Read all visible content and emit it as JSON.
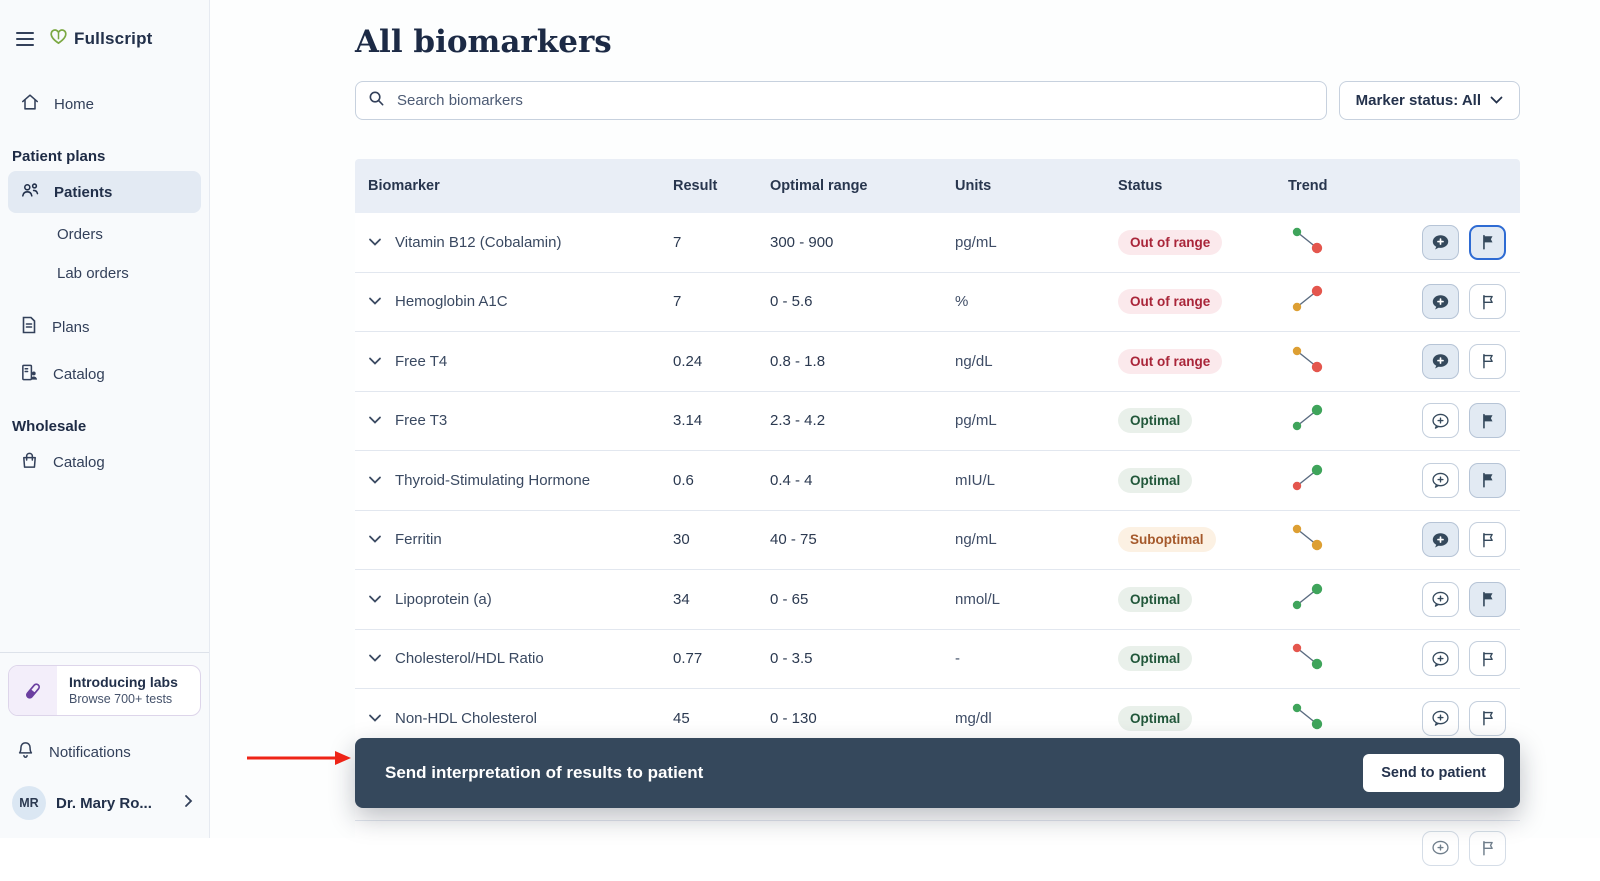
{
  "sidebar": {
    "logo": "Fullscript",
    "home": "Home",
    "patient_plans_heading": "Patient plans",
    "patients": "Patients",
    "orders": "Orders",
    "lab_orders": "Lab orders",
    "plans": "Plans",
    "catalog": "Catalog",
    "wholesale_heading": "Wholesale",
    "wholesale_catalog": "Catalog",
    "labs_banner": {
      "title": "Introducing labs",
      "subtitle": "Browse 700+ tests"
    },
    "notifications": "Notifications",
    "profile": {
      "initials": "MR",
      "name": "Dr. Mary Ro..."
    }
  },
  "header": {
    "title": "All biomarkers",
    "search_placeholder": "Search biomarkers",
    "marker_status_filter": "Marker status: All"
  },
  "table": {
    "columns": [
      "Biomarker",
      "Result",
      "Optimal range",
      "Units",
      "Status",
      "Trend"
    ],
    "rows": [
      {
        "name": "Vitamin B12 (Cobalamin)",
        "result": "7",
        "range": "300 - 900",
        "units": "pg/mL",
        "status": "Out of range",
        "status_type": "out",
        "trend_dir": "down",
        "trend_from": "green",
        "trend_to": "red",
        "comment_style": "filled",
        "flag_style": "filled",
        "flag_focused": true
      },
      {
        "name": "Hemoglobin A1C",
        "result": "7",
        "range": "0 - 5.6",
        "units": "%",
        "status": "Out of range",
        "status_type": "out",
        "trend_dir": "up",
        "trend_from": "orange",
        "trend_to": "red",
        "comment_style": "filled",
        "flag_style": "outline",
        "flag_focused": false
      },
      {
        "name": "Free T4",
        "result": "0.24",
        "range": "0.8 - 1.8",
        "units": "ng/dL",
        "status": "Out of range",
        "status_type": "out",
        "trend_dir": "down",
        "trend_from": "orange",
        "trend_to": "red",
        "comment_style": "filled",
        "flag_style": "outline",
        "flag_focused": false
      },
      {
        "name": "Free T3",
        "result": "3.14",
        "range": "2.3 - 4.2",
        "units": "pg/mL",
        "status": "Optimal",
        "status_type": "optimal",
        "trend_dir": "up",
        "trend_from": "green",
        "trend_to": "green",
        "comment_style": "outline",
        "flag_style": "filled",
        "flag_focused": false
      },
      {
        "name": "Thyroid-Stimulating Hormone",
        "result": "0.6",
        "range": "0.4 - 4",
        "units": "mIU/L",
        "status": "Optimal",
        "status_type": "optimal",
        "trend_dir": "up",
        "trend_from": "red",
        "trend_to": "green",
        "comment_style": "outline",
        "flag_style": "filled",
        "flag_focused": false
      },
      {
        "name": "Ferritin",
        "result": "30",
        "range": "40 - 75",
        "units": "ng/mL",
        "status": "Suboptimal",
        "status_type": "suboptimal",
        "trend_dir": "down",
        "trend_from": "orange",
        "trend_to": "orange",
        "comment_style": "filled",
        "flag_style": "outline",
        "flag_focused": false
      },
      {
        "name": "Lipoprotein (a)",
        "result": "34",
        "range": "0 - 65",
        "units": "nmol/L",
        "status": "Optimal",
        "status_type": "optimal",
        "trend_dir": "up",
        "trend_from": "green",
        "trend_to": "green",
        "comment_style": "outline",
        "flag_style": "filled",
        "flag_focused": false
      },
      {
        "name": "Cholesterol/HDL Ratio",
        "result": "0.77",
        "range": "0 - 3.5",
        "units": "-",
        "status": "Optimal",
        "status_type": "optimal",
        "trend_dir": "down",
        "trend_from": "red",
        "trend_to": "green",
        "comment_style": "outline",
        "flag_style": "outline",
        "flag_focused": false
      },
      {
        "name": "Non-HDL Cholesterol",
        "result": "45",
        "range": "0 - 130",
        "units": "mg/dl",
        "status": "Optimal",
        "status_type": "optimal",
        "trend_dir": "down",
        "trend_from": "green",
        "trend_to": "green",
        "comment_style": "outline",
        "flag_style": "outline",
        "flag_focused": false
      }
    ]
  },
  "toast": {
    "message": "Send interpretation of results to patient",
    "action_label": "Send to patient"
  },
  "colors": {
    "brand_green": "#7ba842",
    "accent_blue": "#2e6bd3",
    "toast_bg": "#35485c",
    "annotation_red": "#ee2417",
    "status_out_bg": "#fbe9ec",
    "status_out_text": "#a92539",
    "status_optimal_bg": "#e9f0ea",
    "status_optimal_text": "#21573a",
    "status_suboptimal_bg": "#fcf1e3",
    "status_suboptimal_text": "#a5592b"
  },
  "trend_colors": {
    "green": "#3fa45b",
    "red": "#e4564d",
    "orange": "#dd9f33"
  },
  "icons": {
    "menu": "hamburger",
    "logo_mark": "heart-leaf",
    "home": "house",
    "patients": "users",
    "plans": "document",
    "catalog": "person-card",
    "wholesale": "shopping-bag",
    "labs": "test-tube",
    "notifications": "bell",
    "search": "magnifier",
    "row_expand": "chevron-down",
    "comment": "speech-bubble-plus",
    "flag": "flag"
  }
}
